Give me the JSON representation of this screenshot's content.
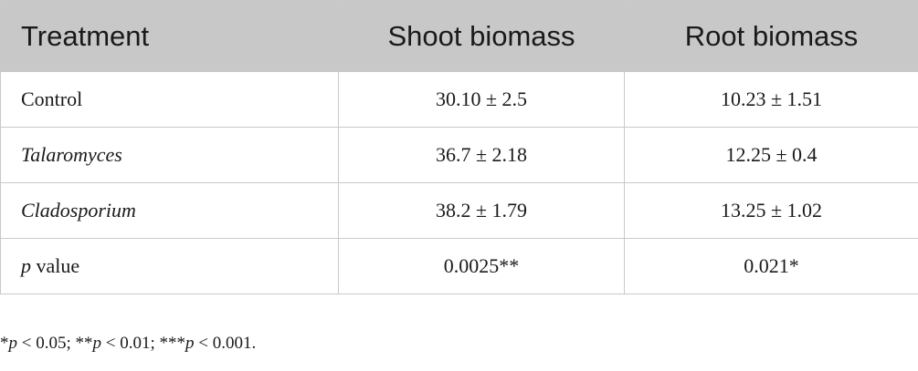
{
  "table": {
    "header": [
      "Treatment",
      "Shoot biomass",
      "Root biomass"
    ],
    "rows": [
      [
        "Control",
        "30.10 ± 2.5",
        "10.23 ± 1.51"
      ],
      [
        "Talaromyces",
        "36.7 ± 2.18",
        "12.25 ± 0.4"
      ],
      [
        "Cladosporium",
        "38.2 ± 1.79",
        "13.25 ± 1.02"
      ],
      [
        [
          "p",
          " value"
        ],
        "0.0025**",
        "0.021*"
      ]
    ]
  },
  "footnote": [
    "*",
    "p",
    " < 0.05; **",
    "p",
    " < 0.01; ***",
    "p",
    " < 0.001."
  ]
}
